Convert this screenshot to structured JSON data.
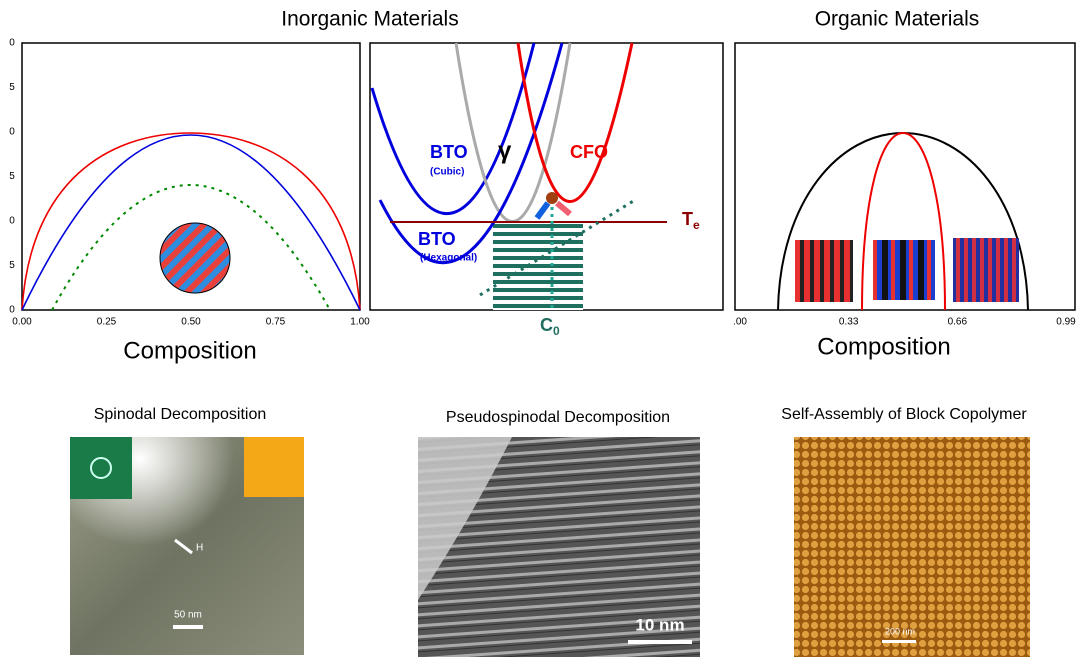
{
  "titles": {
    "inorganic": "Inorganic Materials",
    "organic": "Organic Materials"
  },
  "panel1": {
    "y_tick_fragments": [
      "0",
      "5",
      "0",
      "5",
      "0",
      "5",
      "0"
    ],
    "xticks": [
      "0.00",
      "0.25",
      "0.50",
      "0.75",
      "1.00"
    ],
    "xlabel": "Composition"
  },
  "panel2": {
    "bto_cubic": "BTO",
    "cubic": "(Cubic)",
    "gamma": "γ",
    "cfo": "CFO",
    "bto_hex": "BTO",
    "hexagonal": "(Hexagonal)",
    "te": "T",
    "te_sub": "e",
    "c0": "C",
    "c0_sub": "0"
  },
  "panel3": {
    "xticks": [
      ".00",
      "0.33",
      "0.66",
      "0.99"
    ],
    "xlabel": "Composition"
  },
  "images": [
    {
      "caption": "Spinodal Decomposition",
      "marker": "H",
      "scale": "50 nm"
    },
    {
      "caption": "Pseudospinodal Decomposition",
      "scale": "10 nm"
    },
    {
      "caption": "Self-Assembly of Block Copolymer",
      "scale": "200 nm"
    }
  ]
}
